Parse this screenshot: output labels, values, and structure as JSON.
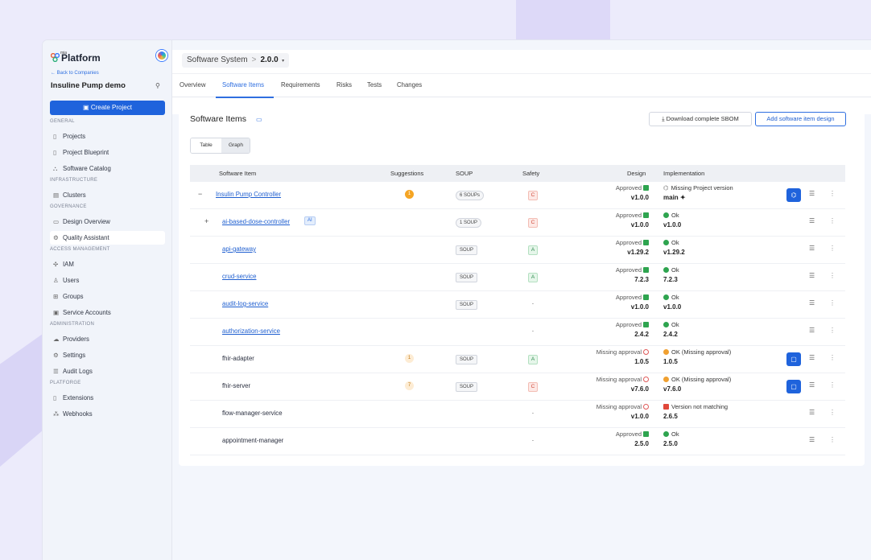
{
  "app": {
    "logo_small": "mia",
    "logo_text": "Platform",
    "back_link": "← Back to Companies",
    "company": "Insuline Pump demo",
    "create_project": "Create Project"
  },
  "sidebar": {
    "sections": [
      {
        "label": "GENERAL",
        "items": [
          {
            "label": "Projects",
            "icon": "document-icon",
            "glyph": "▯"
          },
          {
            "label": "Project Blueprint",
            "icon": "blueprint-icon",
            "glyph": "▯"
          },
          {
            "label": "Software Catalog",
            "icon": "catalog-icon",
            "glyph": "⛬"
          }
        ]
      },
      {
        "label": "INFRASTRUCTURE",
        "items": [
          {
            "label": "Clusters",
            "icon": "server-icon",
            "glyph": "▤"
          }
        ]
      },
      {
        "label": "GOVERNANCE",
        "items": [
          {
            "label": "Design Overview",
            "icon": "monitor-icon",
            "glyph": "▭"
          },
          {
            "label": "Quality Assistant",
            "icon": "gear-icon",
            "glyph": "⚙",
            "active": true
          }
        ]
      },
      {
        "label": "ACCESS MANAGEMENT",
        "items": [
          {
            "label": "IAM",
            "icon": "iam-icon",
            "glyph": "✣"
          },
          {
            "label": "Users",
            "icon": "user-icon",
            "glyph": "♙"
          },
          {
            "label": "Groups",
            "icon": "groups-icon",
            "glyph": "⊞"
          },
          {
            "label": "Service Accounts",
            "icon": "service-account-icon",
            "glyph": "▣"
          }
        ]
      },
      {
        "label": "ADMINISTRATION",
        "items": [
          {
            "label": "Providers",
            "icon": "cloud-icon",
            "glyph": "☁"
          },
          {
            "label": "Settings",
            "icon": "settings-icon",
            "glyph": "⚙"
          },
          {
            "label": "Audit Logs",
            "icon": "list-icon",
            "glyph": "☰"
          }
        ]
      },
      {
        "label": "PLATFORGE",
        "items": [
          {
            "label": "Extensions",
            "icon": "extension-icon",
            "glyph": "▯"
          },
          {
            "label": "Webhooks",
            "icon": "webhook-icon",
            "glyph": "⁂"
          }
        ]
      }
    ]
  },
  "breadcrumb": {
    "system": "Software System",
    "separator": ">",
    "version": "2.0.0"
  },
  "tabs": [
    {
      "label": "Overview"
    },
    {
      "label": "Software Items",
      "active": true
    },
    {
      "label": "Requirements"
    },
    {
      "label": "Risks"
    },
    {
      "label": "Tests"
    },
    {
      "label": "Changes"
    }
  ],
  "card": {
    "title": "Software Items",
    "sbom_button": "Download complete SBOM",
    "design_button": "Add software item design",
    "view_toggle": [
      "Table",
      "Graph"
    ]
  },
  "table": {
    "headers": {
      "item": "Software Item",
      "suggestions": "Suggestions",
      "soup": "SOUP",
      "safety": "Safety",
      "design": "Design",
      "implementation": "Implementation"
    },
    "rows": [
      {
        "expander": "−",
        "name": "Insulin Pump Controller",
        "link": true,
        "indent": 0,
        "suggestions": "1",
        "sugg_color": "#f5a524",
        "sugg_text": "#ffffff",
        "soup": "6 SOUPs",
        "soup_round": true,
        "safety": "C",
        "design_status": "Approved",
        "design_icon": "ok",
        "design_version": "v1.0.0",
        "impl_status": "Missing Project version",
        "impl_icon": "tag",
        "impl_version": "main ✦",
        "action": true
      },
      {
        "expander": "+",
        "name": "ai-based-dose-controller",
        "link": true,
        "indent": 1,
        "ai": "AI",
        "suggestions": "",
        "soup": "1 SOUP",
        "soup_round": true,
        "safety": "C",
        "design_status": "Approved",
        "design_icon": "ok",
        "design_version": "v1.0.0",
        "impl_status": "Ok",
        "impl_icon": "ok",
        "impl_version": "v1.0.0",
        "action": false
      },
      {
        "expander": "",
        "name": "api-gateway",
        "link": true,
        "indent": 1,
        "suggestions": "",
        "soup": "SOUP",
        "safety": "A",
        "design_status": "Approved",
        "design_icon": "ok",
        "design_version": "v1.29.2",
        "impl_status": "Ok",
        "impl_icon": "ok",
        "impl_version": "v1.29.2",
        "action": false
      },
      {
        "expander": "",
        "name": "crud-service",
        "link": true,
        "indent": 1,
        "suggestions": "",
        "soup": "SOUP",
        "safety": "A",
        "design_status": "Approved",
        "design_icon": "ok",
        "design_version": "7.2.3",
        "impl_status": "Ok",
        "impl_icon": "ok",
        "impl_version": "7.2.3",
        "action": false
      },
      {
        "expander": "",
        "name": "audit-log-service",
        "link": true,
        "indent": 1,
        "suggestions": "",
        "soup": "SOUP",
        "safety": "-",
        "design_status": "Approved",
        "design_icon": "ok",
        "design_version": "v1.0.0",
        "impl_status": "Ok",
        "impl_icon": "ok",
        "impl_version": "v1.0.0",
        "action": false
      },
      {
        "expander": "",
        "name": "authorization-service",
        "link": true,
        "indent": 1,
        "suggestions": "",
        "soup": "",
        "safety": "-",
        "design_status": "Approved",
        "design_icon": "ok",
        "design_version": "2.4.2",
        "impl_status": "Ok",
        "impl_icon": "ok",
        "impl_version": "2.4.2",
        "action": false
      },
      {
        "expander": "",
        "name": "fhir-adapter",
        "link": false,
        "indent": 1,
        "suggestions": "1",
        "sugg_color": "#fdecd4",
        "sugg_text": "#c07a18",
        "soup": "SOUP",
        "safety": "A",
        "design_status": "Missing approval",
        "design_icon": "no",
        "design_version": "1.0.5",
        "impl_status": "OK (Missing approval)",
        "impl_icon": "warn",
        "impl_version": "1.0.5",
        "action": true
      },
      {
        "expander": "",
        "name": "fhir-server",
        "link": false,
        "indent": 1,
        "suggestions": "7",
        "sugg_color": "#fdecd4",
        "sugg_text": "#c07a18",
        "soup": "SOUP",
        "safety": "C",
        "design_status": "Missing approval",
        "design_icon": "no",
        "design_version": "v7.6.0",
        "impl_status": "OK (Missing approval)",
        "impl_icon": "warn",
        "impl_version": "v7.6.0",
        "action": true
      },
      {
        "expander": "",
        "name": "flow-manager-service",
        "link": false,
        "indent": 1,
        "suggestions": "",
        "soup": "",
        "safety": "-",
        "design_status": "Missing approval",
        "design_icon": "no",
        "design_version": "v1.0.0",
        "impl_status": "Version not matching",
        "impl_icon": "err",
        "impl_version": "2.6.5",
        "action": false
      },
      {
        "expander": "",
        "name": "appointment-manager",
        "link": false,
        "indent": 1,
        "suggestions": "",
        "soup": "",
        "safety": "-",
        "design_status": "Approved",
        "design_icon": "ok",
        "design_version": "2.5.0",
        "impl_status": "Ok",
        "impl_icon": "ok",
        "impl_version": "2.5.0",
        "action": false
      }
    ]
  }
}
